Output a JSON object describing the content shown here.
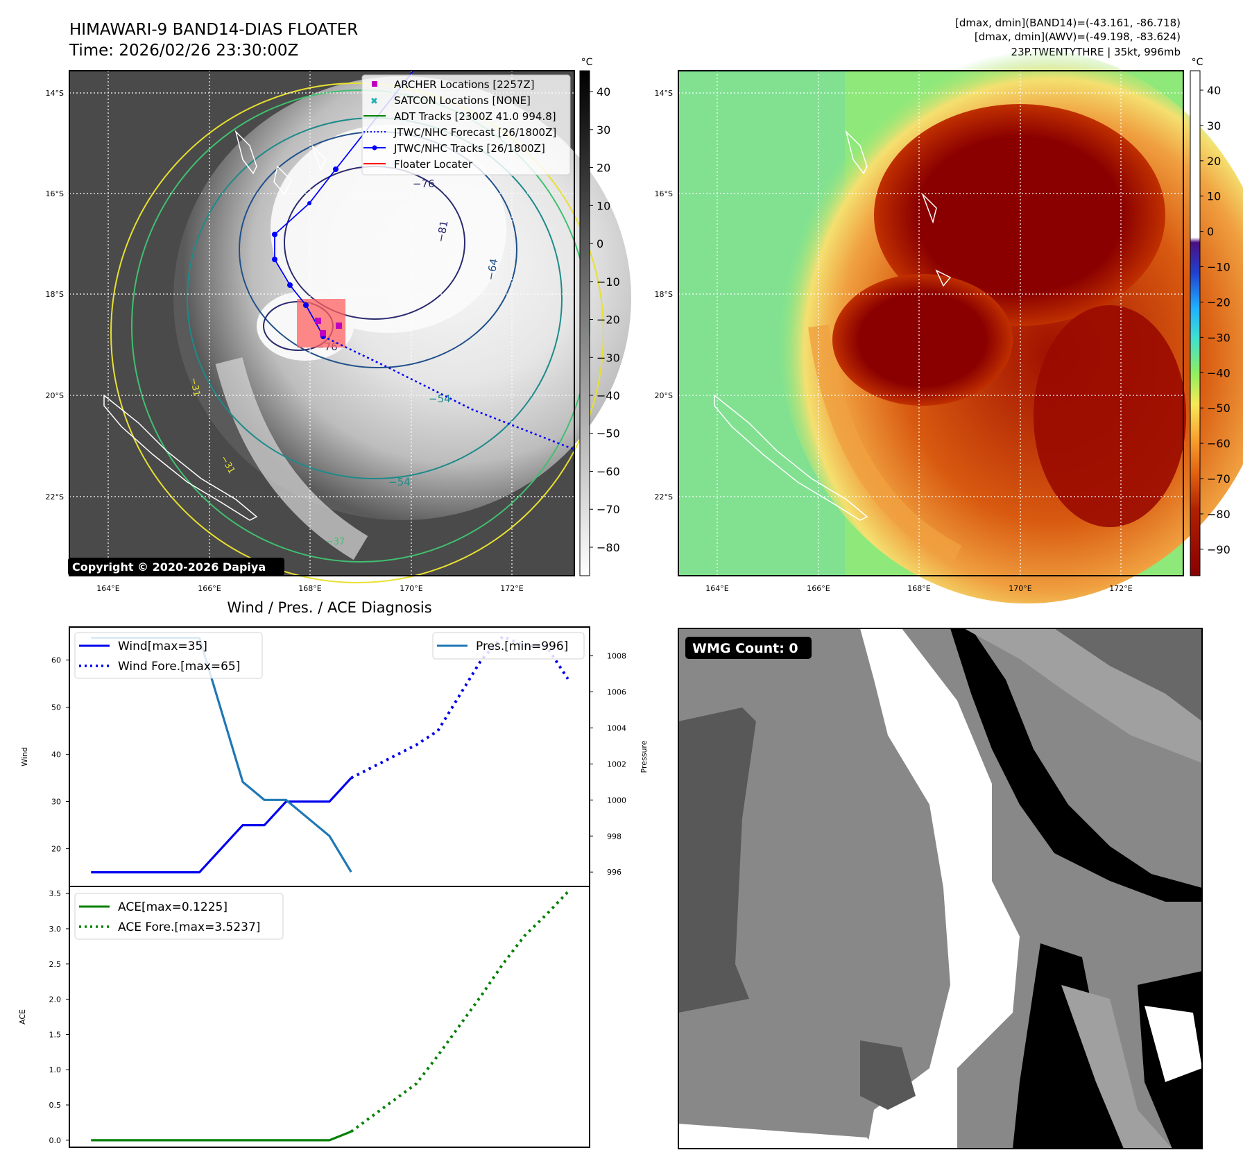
{
  "header": {
    "title_line1": "HIMAWARI-9 BAND14-DIAS FLOATER",
    "title_line2": "Time: 2026/02/26 23:30:00Z",
    "info_line1": "[dmax, dmin](BAND14)=(-43.161, -86.718)",
    "info_line2": "[dmax, dmin](AWV)=(-49.198, -83.624)",
    "info_line3": "23P.TWENTYTHRE | 35kt, 996mb"
  },
  "copyright": "Copyright © 2020-2026 Dapiya",
  "colorbar_unit": "°C",
  "ir_colorbar_ticks": [
    "40",
    "30",
    "20",
    "10",
    "0",
    "−10",
    "−20",
    "−30",
    "−40",
    "−50",
    "−60",
    "−70",
    "−80"
  ],
  "awv_colorbar_ticks": [
    "40",
    "30",
    "20",
    "10",
    "0",
    "−10",
    "−20",
    "−30",
    "−40",
    "−50",
    "−60",
    "−70",
    "−80",
    "−90"
  ],
  "map_lat_labels": [
    "14°S",
    "16°S",
    "18°S",
    "20°S",
    "22°S"
  ],
  "map_lon_labels": [
    "164°E",
    "166°E",
    "168°E",
    "170°E",
    "172°E"
  ],
  "contour_labels": [
    "−76",
    "−81",
    "−64",
    "−54",
    "−54",
    "−76",
    "−31",
    "−37",
    "−31"
  ],
  "legend": {
    "items": [
      {
        "label": "ARCHER Locations [2257Z]",
        "color": "#c000c0"
      },
      {
        "label": "SATCON Locations [NONE]",
        "color": "#20b0b0"
      },
      {
        "label": "ADT Tracks [2300Z 41.0 994.8]",
        "color": "#008000"
      },
      {
        "label": "JTWC/NHC Forecast [26/1800Z]",
        "color": "#0000ff"
      },
      {
        "label": "JTWC/NHC Tracks [26/1800Z]",
        "color": "#0000ff"
      },
      {
        "label": "Floater Locater",
        "color": "#ff0000"
      }
    ]
  },
  "wmg_label": "WMG Count: 0",
  "chart_data": [
    {
      "type": "line",
      "title": "Wind / Pres. / ACE Diagnosis",
      "ylabel": "Wind",
      "ylabel_right": "Pressure",
      "ylim": [
        12,
        67
      ],
      "ylim_right": [
        995.2,
        1009.6
      ],
      "x_index_range": [
        0,
        24
      ],
      "yticks": [
        20,
        30,
        40,
        50,
        60
      ],
      "yticks_right": [
        996,
        998,
        1000,
        1002,
        1004,
        1006,
        1008
      ],
      "legend_left": [
        "Wind[max=35]",
        "Wind Fore.[max=65]"
      ],
      "legend_right": [
        "Pres.[min=996]"
      ],
      "series": [
        {
          "name": "Wind[max=35]",
          "axis": "left",
          "style": "solid",
          "color": "#0000ee",
          "x": [
            1,
            6,
            8,
            9,
            10,
            12,
            13
          ],
          "values": [
            15,
            15,
            25,
            25,
            30,
            30,
            35
          ]
        },
        {
          "name": "Wind Fore.[max=65]",
          "axis": "left",
          "style": "dotted",
          "color": "#0000ee",
          "x": [
            13,
            16,
            17,
            19,
            20,
            21,
            22,
            23
          ],
          "values": [
            35,
            42,
            45,
            60,
            65,
            63,
            63,
            56
          ]
        },
        {
          "name": "Pres.[min=996]",
          "axis": "right",
          "style": "solid",
          "color": "#1f77b4",
          "x": [
            1,
            6,
            8,
            9,
            10,
            11,
            12,
            13
          ],
          "values": [
            1009,
            1009,
            1001,
            1000,
            1000,
            999,
            998,
            996
          ]
        }
      ]
    },
    {
      "type": "line",
      "ylabel": "ACE",
      "ylim": [
        -0.1,
        3.6
      ],
      "x_index_range": [
        0,
        24
      ],
      "yticks": [
        0.0,
        0.5,
        1.0,
        1.5,
        2.0,
        2.5,
        3.0,
        3.5
      ],
      "ytick_labels": [
        "0.0",
        "0.5",
        "1.0",
        "1.5",
        "2.0",
        "2.5",
        "3.0",
        "3.5"
      ],
      "legend": [
        "ACE[max=0.1225]",
        "ACE Fore.[max=3.5237]"
      ],
      "series": [
        {
          "name": "ACE[max=0.1225]",
          "style": "solid",
          "color": "#008000",
          "x": [
            1,
            12,
            13
          ],
          "values": [
            0,
            0,
            0.1225
          ]
        },
        {
          "name": "ACE Fore.[max=3.5237]",
          "style": "dotted",
          "color": "#008000",
          "x": [
            13,
            16,
            17,
            19,
            20,
            21,
            22,
            23
          ],
          "values": [
            0.1225,
            0.8,
            1.2,
            2.05,
            2.5,
            2.9,
            3.2,
            3.5237
          ]
        }
      ]
    }
  ]
}
